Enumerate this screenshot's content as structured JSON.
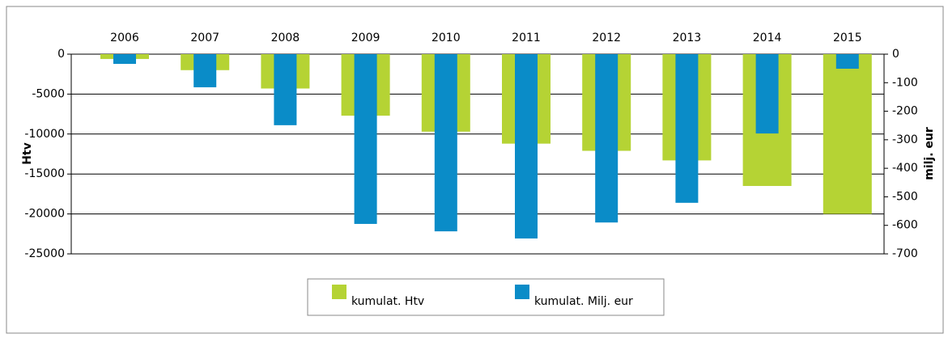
{
  "chart_data": {
    "type": "bar",
    "categories": [
      "2006",
      "2007",
      "2008",
      "2009",
      "2010",
      "2011",
      "2012",
      "2013",
      "2014",
      "2015"
    ],
    "series": [
      {
        "name": "kumulat. Htv",
        "color": "#b5d334",
        "values": [
          -600,
          -2000,
          -4300,
          -7700,
          -9700,
          -11200,
          -12100,
          -13300,
          -16500,
          -20000
        ]
      },
      {
        "name": "kumulat. Milj. eur",
        "color": "#0a8cc8",
        "axis": "y2",
        "values": [
          -34,
          -116,
          -249,
          -595,
          -621,
          -646,
          -590,
          -521,
          -278,
          -51
        ]
      }
    ],
    "ylabel": "Htv",
    "y2label": "milj. eur",
    "ylim": [
      -25000,
      0
    ],
    "yticks": [
      0,
      -5000,
      -10000,
      -15000,
      -20000,
      -25000
    ],
    "y2lim": [
      -700,
      0
    ],
    "y2ticks": [
      0,
      -100,
      -200,
      -300,
      -400,
      -500,
      -600,
      -700
    ],
    "grid": true,
    "legend": "bottom"
  }
}
